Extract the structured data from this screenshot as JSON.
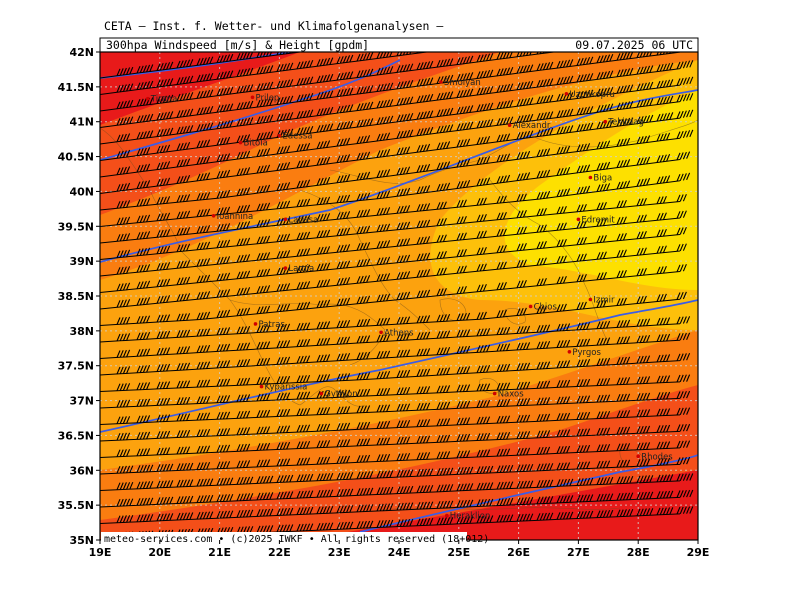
{
  "header": {
    "org": "CETA — Inst. f. Wetter- und Klimafolgenanalysen —",
    "product": "300hpa Windspeed [m/s] & Height [gpdm]",
    "valid": "09.07.2025 06 UTC"
  },
  "credit": "meteo-services.com • (c)2025 IWKF • All rights reserved (18+012)",
  "axes": {
    "lon_labels": [
      "19E",
      "20E",
      "21E",
      "22E",
      "23E",
      "24E",
      "25E",
      "26E",
      "27E",
      "28E",
      "29E"
    ],
    "lat_labels": [
      "42N",
      "41.5N",
      "41N",
      "40.5N",
      "40N",
      "39.5N",
      "39N",
      "38.5N",
      "38N",
      "37.5N",
      "37N",
      "36.5N",
      "36N",
      "35.5N",
      "35N"
    ]
  },
  "cities": [
    {
      "name": "Tirana",
      "lon": 19.8,
      "lat": 41.33
    },
    {
      "name": "Prilep",
      "lon": 21.55,
      "lat": 41.35
    },
    {
      "name": "Bitola",
      "lon": 21.35,
      "lat": 40.7
    },
    {
      "name": "Edessa",
      "lon": 22.0,
      "lat": 40.8
    },
    {
      "name": "Smolyan",
      "lon": 24.7,
      "lat": 41.57
    },
    {
      "name": "Alexandr.",
      "lon": 25.85,
      "lat": 40.95
    },
    {
      "name": "Uzunkopru",
      "lon": 26.8,
      "lat": 41.4
    },
    {
      "name": "Tekirdag",
      "lon": 27.45,
      "lat": 41.0
    },
    {
      "name": "Biga",
      "lon": 27.2,
      "lat": 40.2
    },
    {
      "name": "Edremit",
      "lon": 27.0,
      "lat": 39.6
    },
    {
      "name": "Ioannina",
      "lon": 20.9,
      "lat": 39.65
    },
    {
      "name": "Larissa",
      "lon": 22.1,
      "lat": 39.6
    },
    {
      "name": "Lamia",
      "lon": 22.1,
      "lat": 38.9
    },
    {
      "name": "Athens",
      "lon": 23.7,
      "lat": 37.98
    },
    {
      "name": "Patras",
      "lon": 21.6,
      "lat": 38.1
    },
    {
      "name": "Chios",
      "lon": 26.2,
      "lat": 38.35
    },
    {
      "name": "Izmir",
      "lon": 27.2,
      "lat": 38.45
    },
    {
      "name": "Pyrgos",
      "lon": 26.85,
      "lat": 37.7
    },
    {
      "name": "Kyparissia",
      "lon": 21.7,
      "lat": 37.2
    },
    {
      "name": "Gythion",
      "lon": 22.7,
      "lat": 37.1
    },
    {
      "name": "Naxos",
      "lon": 25.6,
      "lat": 37.1
    },
    {
      "name": "Rhodes",
      "lon": 28.0,
      "lat": 36.2
    },
    {
      "name": "Heraklion",
      "lon": 24.8,
      "lat": 35.35
    }
  ],
  "colors": {
    "wind_band_1": "#e81a1a",
    "wind_band_2": "#f44f19",
    "wind_band_3": "#fa7d10",
    "wind_band_4": "#fca20e",
    "wind_band_5": "#fdc00a",
    "wind_band_6": "#fde000",
    "height_contour": "#3a5ce8",
    "streamline": "#000000",
    "grid": "#cfcfcf"
  }
}
